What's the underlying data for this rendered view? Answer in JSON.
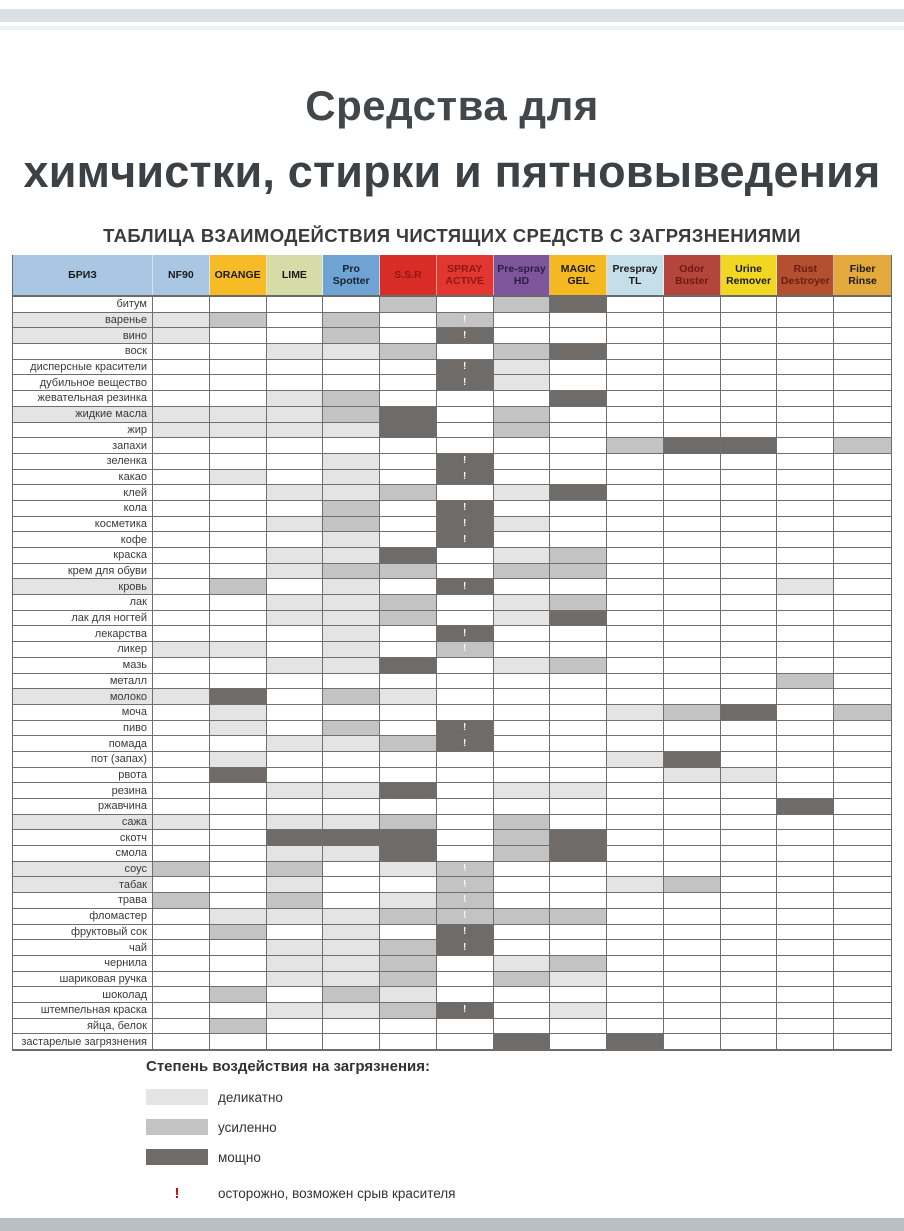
{
  "header": {
    "title_line1": "Средства для",
    "title_line2": "химчистки, стирки и пятновыведения",
    "subtitle": "ТАБЛИЦА ВЗАИМОДЕЙСТВИЯ ЧИСТЯЩИХ СРЕДСТВ С ЗАГРЯЗНЕНИЯМИ"
  },
  "table": {
    "shades": {
      "1": "#e4e4e4",
      "2": "#c3c3c3",
      "3": "#6e6b68"
    },
    "grid_color": "#6f6f6f",
    "columns": [
      {
        "label": "БРИЗ",
        "bg": "#a9c7e3",
        "fg": "#1a1a1a"
      },
      {
        "label": "NF90",
        "bg": "#a9c7e3",
        "fg": "#1a1a1a"
      },
      {
        "label": "ORANGE",
        "bg": "#f6bb27",
        "fg": "#1a1a1a"
      },
      {
        "label": "LIME",
        "bg": "#d6dca8",
        "fg": "#1a1a1a"
      },
      {
        "label": "Pro Spotter",
        "bg": "#6fa3d3",
        "fg": "#15232e"
      },
      {
        "label": "S.S.R",
        "bg": "#da2c27",
        "fg": "#8b1a12"
      },
      {
        "label": "SPRAY ACTIVE",
        "bg": "#e23631",
        "fg": "#8b1a12"
      },
      {
        "label": "Pre-spray HD",
        "bg": "#7c559b",
        "fg": "#2e1d42"
      },
      {
        "label": "MAGIC GEL",
        "bg": "#f5b820",
        "fg": "#1a1a1a"
      },
      {
        "label": "Prespray TL",
        "bg": "#c5dfea",
        "fg": "#1a1a1a"
      },
      {
        "label": "Odor Buster",
        "bg": "#b4453c",
        "fg": "#701812"
      },
      {
        "label": "Urine Remover",
        "bg": "#f0d722",
        "fg": "#1a1a1a"
      },
      {
        "label": "Rust Destroyer",
        "bg": "#b3502f",
        "fg": "#6e1a12"
      },
      {
        "label": "Fiber Rinse",
        "bg": "#e3a93c",
        "fg": "#1a1a1a"
      }
    ],
    "rows": [
      {
        "label": "битум",
        "cells": [
          "",
          "",
          "",
          "",
          "",
          "2",
          "",
          "2",
          "3",
          "",
          "",
          "",
          "",
          ""
        ]
      },
      {
        "label": "варенье",
        "cells": [
          "1",
          "1",
          "2",
          "",
          "2",
          "",
          "2!",
          "",
          "",
          "",
          "",
          "",
          "",
          ""
        ]
      },
      {
        "label": "вино",
        "cells": [
          "1",
          "1",
          "",
          "",
          "2",
          "",
          "3!",
          "",
          "",
          "",
          "",
          "",
          "",
          ""
        ]
      },
      {
        "label": "воск",
        "cells": [
          "",
          "",
          "",
          "1",
          "1",
          "2",
          "",
          "2",
          "3",
          "",
          "",
          "",
          "",
          ""
        ]
      },
      {
        "label": "дисперсные красители",
        "cells": [
          "",
          "",
          "",
          "",
          "",
          "",
          "3!",
          "1",
          "",
          "",
          "",
          "",
          "",
          ""
        ]
      },
      {
        "label": "дубильное вещество",
        "cells": [
          "",
          "",
          "",
          "",
          "",
          "",
          "3!",
          "1",
          "",
          "",
          "",
          "",
          "",
          ""
        ]
      },
      {
        "label": "жевательная резинка",
        "cells": [
          "",
          "",
          "",
          "1",
          "2",
          "",
          "",
          "",
          "3",
          "",
          "",
          "",
          "",
          ""
        ]
      },
      {
        "label": "жидкие масла",
        "cells": [
          "1",
          "1",
          "1",
          "1",
          "2",
          "3",
          "",
          "2",
          "",
          "",
          "",
          "",
          "",
          ""
        ]
      },
      {
        "label": "жир",
        "cells": [
          "",
          "1",
          "1",
          "1",
          "1",
          "3",
          "",
          "2",
          "",
          "",
          "",
          "",
          "",
          ""
        ]
      },
      {
        "label": "запахи",
        "cells": [
          "",
          "",
          "",
          "",
          "",
          "",
          "",
          "",
          "",
          "2",
          "3",
          "3",
          "",
          "2"
        ]
      },
      {
        "label": "зеленка",
        "cells": [
          "",
          "",
          "",
          "",
          "1",
          "",
          "3!",
          "",
          "",
          "",
          "",
          "",
          "",
          ""
        ]
      },
      {
        "label": "какао",
        "cells": [
          "",
          "",
          "1",
          "",
          "1",
          "",
          "3!",
          "",
          "",
          "",
          "",
          "",
          "",
          ""
        ]
      },
      {
        "label": "клей",
        "cells": [
          "",
          "",
          "",
          "1",
          "1",
          "2",
          "",
          "1",
          "3",
          "",
          "",
          "",
          "",
          ""
        ]
      },
      {
        "label": "кола",
        "cells": [
          "",
          "",
          "",
          "",
          "2",
          "",
          "3!",
          "",
          "",
          "",
          "",
          "",
          "",
          ""
        ]
      },
      {
        "label": "косметика",
        "cells": [
          "",
          "",
          "",
          "1",
          "2",
          "",
          "3!",
          "1",
          "",
          "",
          "",
          "",
          "",
          ""
        ]
      },
      {
        "label": "кофе",
        "cells": [
          "",
          "",
          "",
          "",
          "1",
          "",
          "3!",
          "",
          "",
          "",
          "",
          "",
          "",
          ""
        ]
      },
      {
        "label": "краска",
        "cells": [
          "",
          "",
          "",
          "1",
          "1",
          "3",
          "",
          "1",
          "2",
          "",
          "",
          "",
          "",
          ""
        ]
      },
      {
        "label": "крем для обуви",
        "cells": [
          "",
          "",
          "",
          "1",
          "2",
          "2",
          "",
          "2",
          "2",
          "",
          "",
          "",
          "",
          ""
        ]
      },
      {
        "label": "кровь",
        "cells": [
          "1",
          "",
          "2",
          "",
          "1",
          "",
          "3!",
          "",
          "",
          "",
          "",
          "",
          "1",
          ""
        ]
      },
      {
        "label": "лак",
        "cells": [
          "",
          "",
          "",
          "1",
          "1",
          "2",
          "",
          "1",
          "2",
          "",
          "",
          "",
          "",
          ""
        ]
      },
      {
        "label": "лак для ногтей",
        "cells": [
          "",
          "",
          "",
          "1",
          "1",
          "2",
          "",
          "1",
          "3",
          "",
          "",
          "",
          "",
          ""
        ]
      },
      {
        "label": "лекарства",
        "cells": [
          "",
          "",
          "",
          "",
          "1",
          "",
          "3!",
          "",
          "",
          "",
          "",
          "",
          "",
          ""
        ]
      },
      {
        "label": "ликер",
        "cells": [
          "",
          "1",
          "1",
          "",
          "1",
          "",
          "2!",
          "",
          "",
          "",
          "",
          "",
          "",
          ""
        ]
      },
      {
        "label": "мазь",
        "cells": [
          "",
          "",
          "",
          "1",
          "1",
          "3",
          "",
          "1",
          "2",
          "",
          "",
          "",
          "",
          ""
        ]
      },
      {
        "label": "металл",
        "cells": [
          "",
          "",
          "",
          "",
          "",
          "",
          "",
          "",
          "",
          "",
          "",
          "",
          "2",
          ""
        ]
      },
      {
        "label": "молоко",
        "cells": [
          "1",
          "1",
          "3",
          "",
          "2",
          "1",
          "",
          "",
          "",
          "",
          "",
          "",
          "",
          ""
        ]
      },
      {
        "label": "моча",
        "cells": [
          "",
          "",
          "1",
          "",
          "",
          "",
          "",
          "",
          "",
          "1",
          "2",
          "3",
          "",
          "2"
        ]
      },
      {
        "label": "пиво",
        "cells": [
          "",
          "",
          "1",
          "",
          "2",
          "",
          "3!",
          "",
          "",
          "",
          "",
          "",
          "",
          ""
        ]
      },
      {
        "label": "помада",
        "cells": [
          "",
          "",
          "",
          "1",
          "1",
          "2",
          "3!",
          "",
          "",
          "",
          "",
          "",
          "",
          ""
        ]
      },
      {
        "label": "пот (запах)",
        "cells": [
          "",
          "",
          "1",
          "",
          "",
          "",
          "",
          "",
          "",
          "1",
          "3",
          "",
          "",
          ""
        ]
      },
      {
        "label": "рвота",
        "cells": [
          "",
          "",
          "3",
          "",
          "",
          "",
          "",
          "",
          "",
          "",
          "1",
          "1",
          "",
          ""
        ]
      },
      {
        "label": "резина",
        "cells": [
          "",
          "",
          "",
          "1",
          "1",
          "3",
          "",
          "1",
          "1",
          "",
          "",
          "",
          "",
          ""
        ]
      },
      {
        "label": "ржавчина",
        "cells": [
          "",
          "",
          "",
          "",
          "",
          "",
          "",
          "",
          "",
          "",
          "",
          "",
          "3",
          ""
        ]
      },
      {
        "label": "сажа",
        "cells": [
          "1",
          "1",
          "",
          "1",
          "1",
          "2",
          "",
          "2",
          "",
          "",
          "",
          "",
          "",
          ""
        ]
      },
      {
        "label": "скотч",
        "cells": [
          "",
          "",
          "",
          "3",
          "3",
          "3",
          "",
          "2",
          "3",
          "",
          "",
          "",
          "",
          ""
        ]
      },
      {
        "label": "смола",
        "cells": [
          "",
          "",
          "",
          "1",
          "1",
          "3",
          "",
          "2",
          "3",
          "",
          "",
          "",
          "",
          ""
        ]
      },
      {
        "label": "соус",
        "cells": [
          "1",
          "2",
          "",
          "2",
          "",
          "1",
          "2!",
          "",
          "",
          "",
          "",
          "",
          "",
          ""
        ]
      },
      {
        "label": "табак",
        "cells": [
          "1",
          "",
          "",
          "1",
          "",
          "",
          "2!",
          "",
          "",
          "1",
          "2",
          "",
          "",
          ""
        ]
      },
      {
        "label": "трава",
        "cells": [
          "",
          "2",
          "",
          "2",
          "",
          "1",
          "2!",
          "",
          "",
          "",
          "",
          "",
          "",
          ""
        ]
      },
      {
        "label": "фломастер",
        "cells": [
          "",
          "",
          "1",
          "1",
          "1",
          "2",
          "2!",
          "2",
          "2",
          "",
          "",
          "",
          "",
          ""
        ]
      },
      {
        "label": "фруктовый сок",
        "cells": [
          "",
          "",
          "2",
          "",
          "1",
          "",
          "3!",
          "",
          "",
          "",
          "",
          "",
          "",
          ""
        ]
      },
      {
        "label": "чай",
        "cells": [
          "",
          "",
          "",
          "1",
          "1",
          "2",
          "3!",
          "",
          "",
          "",
          "",
          "",
          "",
          ""
        ]
      },
      {
        "label": "чернила",
        "cells": [
          "",
          "",
          "",
          "1",
          "1",
          "2",
          "",
          "1",
          "2",
          "",
          "",
          "",
          "",
          ""
        ]
      },
      {
        "label": "шариковая ручка",
        "cells": [
          "",
          "",
          "",
          "1",
          "1",
          "2",
          "",
          "2",
          "1",
          "",
          "",
          "",
          "",
          ""
        ]
      },
      {
        "label": "шоколад",
        "cells": [
          "",
          "",
          "2",
          "",
          "2",
          "1",
          "",
          "",
          "",
          "",
          "",
          "",
          "",
          ""
        ]
      },
      {
        "label": "штемпельная краска",
        "cells": [
          "",
          "",
          "",
          "1",
          "1",
          "2",
          "3!",
          "",
          "1",
          "",
          "",
          "",
          "",
          ""
        ]
      },
      {
        "label": "яйца, белок",
        "cells": [
          "",
          "",
          "2",
          "",
          "",
          "",
          "",
          "",
          "",
          "",
          "",
          "",
          "",
          ""
        ]
      },
      {
        "label": "застарелые загрязнения",
        "cells": [
          "",
          "",
          "",
          "",
          "",
          "",
          "",
          "3",
          "",
          "3",
          "",
          "",
          "",
          ""
        ]
      }
    ]
  },
  "legend": {
    "heading": "Степень воздействия на загрязнения:",
    "items": [
      {
        "code": "1",
        "label": "деликатно"
      },
      {
        "code": "2",
        "label": "усиленно"
      },
      {
        "code": "3",
        "label": "мощно"
      }
    ],
    "warning": {
      "symbol": "!",
      "label": "осторожно, возможен срыв красителя",
      "color": "#c0110a"
    }
  }
}
